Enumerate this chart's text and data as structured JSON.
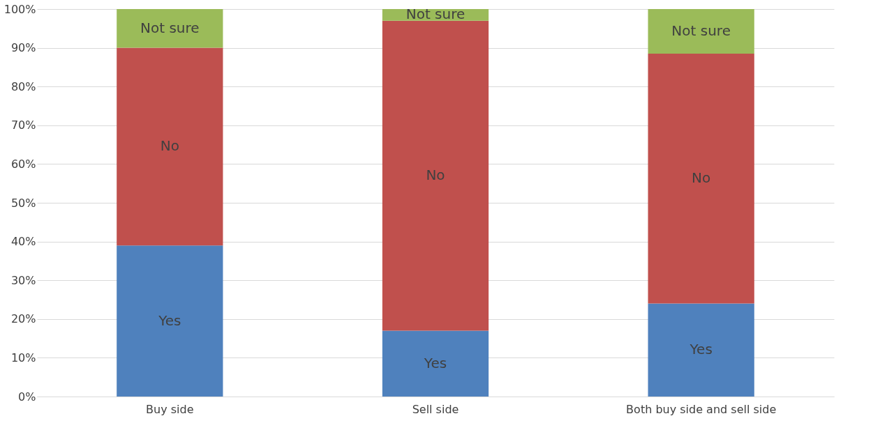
{
  "chart_data": {
    "type": "bar",
    "stacked": true,
    "categories": [
      "Buy side",
      "Sell side",
      "Both buy side and sell side"
    ],
    "series": [
      {
        "name": "Yes",
        "color": "#4f81bd",
        "values": [
          39,
          17,
          24
        ]
      },
      {
        "name": "No",
        "color": "#c0504d",
        "values": [
          51,
          80,
          64.5
        ]
      },
      {
        "name": "Not sure",
        "color": "#9bbb59",
        "values": [
          10,
          3,
          11.5
        ]
      }
    ],
    "ylim": [
      0,
      100
    ],
    "yticks": [
      {
        "value": 0,
        "label": "0%"
      },
      {
        "value": 10,
        "label": "10%"
      },
      {
        "value": 20,
        "label": "20%"
      },
      {
        "value": 30,
        "label": "30%"
      },
      {
        "value": 40,
        "label": "40%"
      },
      {
        "value": 50,
        "label": "50%"
      },
      {
        "value": 60,
        "label": "60%"
      },
      {
        "value": 70,
        "label": "70%"
      },
      {
        "value": 80,
        "label": "80%"
      },
      {
        "value": 90,
        "label": "90%"
      },
      {
        "value": 100,
        "label": "100%"
      }
    ],
    "grid": "y"
  }
}
